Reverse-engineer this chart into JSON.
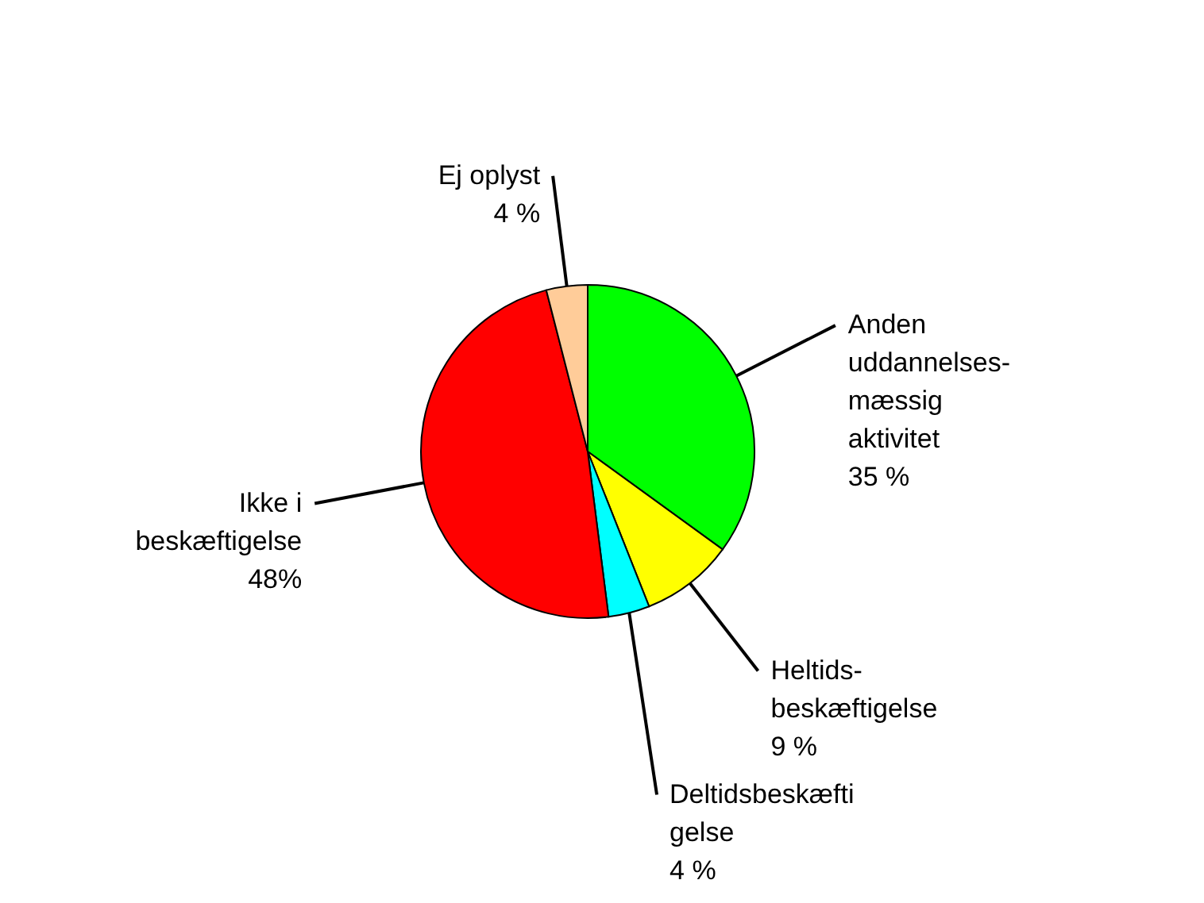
{
  "chart_data": {
    "type": "pie",
    "categories": [
      "Anden\nuddannelses-\nmæssig\naktivitet",
      "Heltids-\nbeskæftigelse",
      "Deltidsbeskæfti\ngelse",
      "Ikke i\nbeskæftigelse",
      "Ej oplyst"
    ],
    "values": [
      35,
      9,
      4,
      48,
      4
    ],
    "value_labels": [
      "35 %",
      "9 %",
      "4 %",
      "48%",
      "4 %"
    ],
    "colors": [
      "#00ff00",
      "#ffff00",
      "#00ffff",
      "#ff0000",
      "#ffcc99"
    ]
  }
}
